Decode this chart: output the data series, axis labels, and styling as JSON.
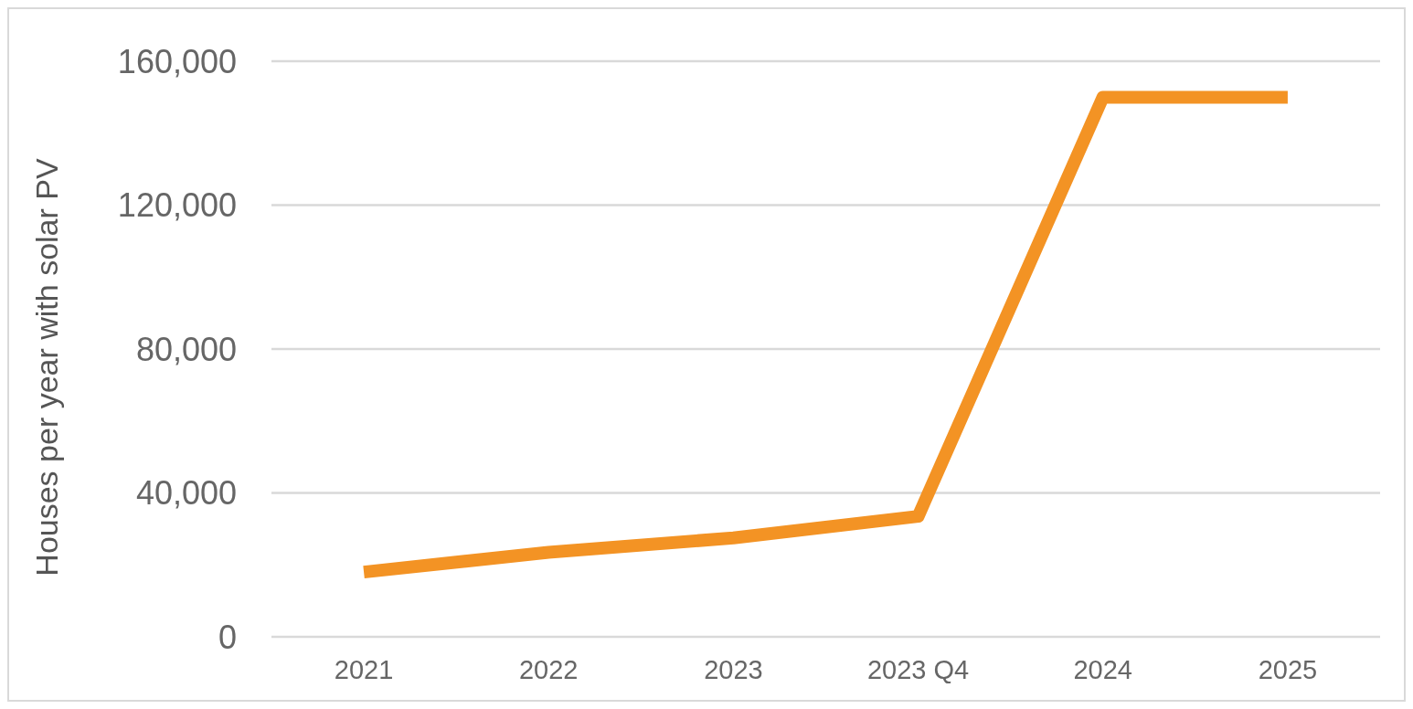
{
  "chart_data": {
    "type": "line",
    "ylabel": "Houses per year with solar PV",
    "categories": [
      "2021",
      "2022",
      "2023",
      "2023 Q4",
      "2024",
      "2025"
    ],
    "series": [
      {
        "color": "#f39324",
        "values": [
          18000,
          23500,
          27500,
          33500,
          150000,
          150000
        ]
      }
    ],
    "ylim": [
      0,
      160000
    ],
    "yticks": [
      {
        "value": 0,
        "label": "0"
      },
      {
        "value": 40000,
        "label": "40,000"
      },
      {
        "value": 80000,
        "label": "80,000"
      },
      {
        "value": 120000,
        "label": "120,000"
      },
      {
        "value": 160000,
        "label": "160,000"
      }
    ],
    "grid": "y",
    "marker": "none",
    "line_style": "solid"
  }
}
